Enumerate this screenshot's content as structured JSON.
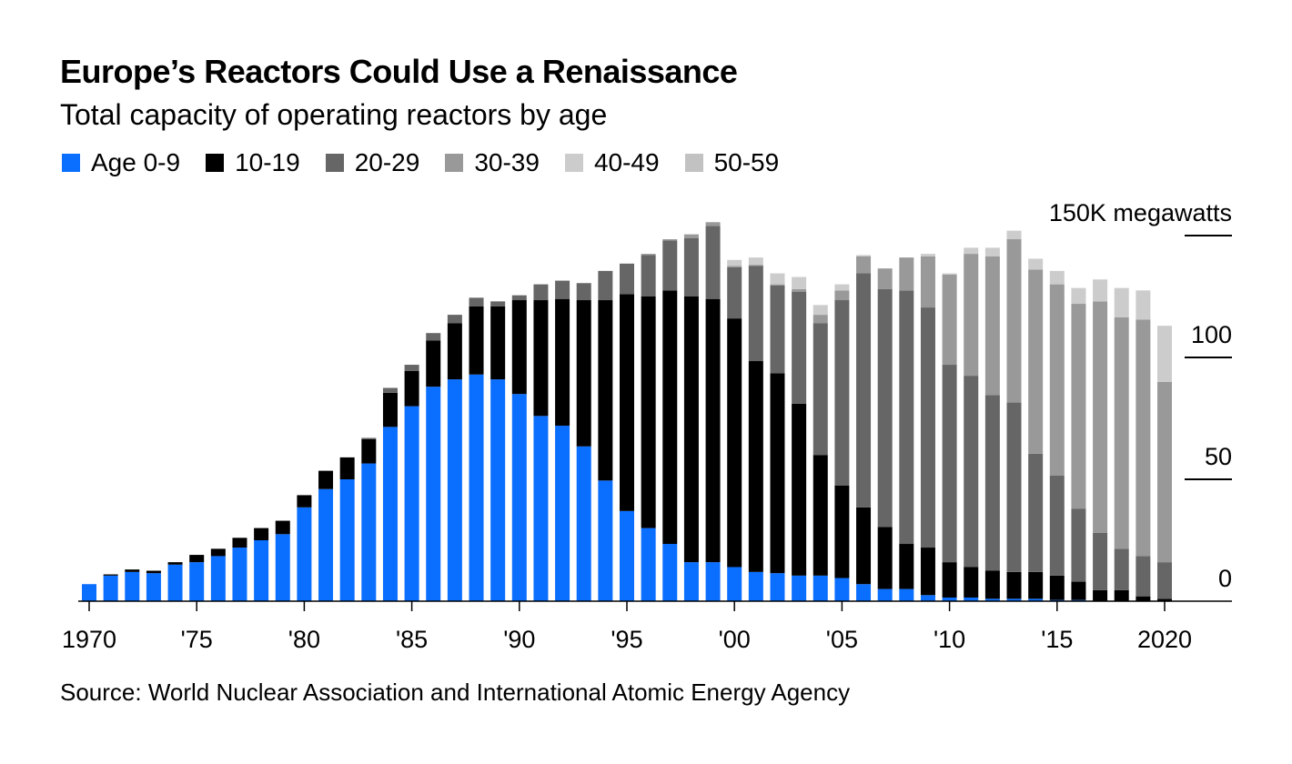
{
  "header": {
    "title": "Europe’s Reactors Could Use a Renaissance",
    "subtitle": "Total capacity of operating reactors by age"
  },
  "footer": {
    "source": "Source: World Nuclear Association and International Atomic Energy Agency"
  },
  "chart_data": {
    "type": "bar",
    "stacked": true,
    "title": "Europe’s Reactors Could Use a Renaissance",
    "subtitle": "Total capacity of operating reactors by age",
    "unit_label": "150K megawatts",
    "ylim": [
      0,
      150
    ],
    "yticks": [
      0,
      50,
      100,
      150
    ],
    "ytick_labels": [
      "0",
      "50",
      "100",
      "150K megawatts"
    ],
    "x": [
      1970,
      1971,
      1972,
      1973,
      1974,
      1975,
      1976,
      1977,
      1978,
      1979,
      1980,
      1981,
      1982,
      1983,
      1984,
      1985,
      1986,
      1987,
      1988,
      1989,
      1990,
      1991,
      1992,
      1993,
      1994,
      1995,
      1996,
      1997,
      1998,
      1999,
      2000,
      2001,
      2002,
      2003,
      2004,
      2005,
      2006,
      2007,
      2008,
      2009,
      2010,
      2011,
      2012,
      2013,
      2014,
      2015,
      2016,
      2017,
      2018,
      2019,
      2020
    ],
    "xticks": [
      1970,
      1975,
      1980,
      1985,
      1990,
      1995,
      2000,
      2005,
      2010,
      2015,
      2020
    ],
    "xtick_labels": [
      "1970",
      "'75",
      "'80",
      "'85",
      "'90",
      "'95",
      "'00",
      "'05",
      "'10",
      "'15",
      "2020"
    ],
    "legend_position": "top-left",
    "series": [
      {
        "name": "Age 0-9",
        "label": "Age 0-9",
        "color": "#0a6eff",
        "values": [
          7,
          10.5,
          12,
          11.5,
          15,
          16,
          18.5,
          22,
          25,
          27.5,
          38.5,
          46,
          50,
          56.5,
          71.5,
          80,
          88,
          91,
          93,
          91,
          85,
          76,
          72,
          63.5,
          49.5,
          37,
          30,
          23.5,
          16,
          16,
          14,
          12,
          11.5,
          10.5,
          10.5,
          9.5,
          7,
          5,
          5,
          2.5,
          1.5,
          1.5,
          1,
          1,
          1,
          0.5,
          0.5,
          0,
          0,
          0,
          0
        ]
      },
      {
        "name": "10-19",
        "label": "10-19",
        "color": "#000000",
        "values": [
          0,
          0.5,
          1,
          1,
          1,
          3,
          3,
          4,
          5,
          5.5,
          5,
          7.5,
          9,
          10,
          14,
          14.5,
          19,
          23,
          28,
          30,
          38.5,
          47.5,
          52,
          60,
          74,
          89,
          95,
          104,
          109,
          108,
          102,
          86.5,
          82,
          70.5,
          49.5,
          38,
          31.5,
          25.5,
          18.5,
          19.5,
          14.5,
          12.5,
          11.5,
          11,
          11,
          10,
          7.5,
          4.5,
          4.5,
          2,
          1
        ]
      },
      {
        "name": "20-29",
        "label": "20-29",
        "color": "#666666",
        "values": [
          0,
          0,
          0,
          0,
          0,
          0,
          0,
          0,
          0,
          0,
          0,
          0,
          0,
          0.5,
          2,
          2.5,
          3,
          3.5,
          3.5,
          2,
          2,
          6.5,
          7.5,
          7,
          12,
          12.5,
          17,
          20.5,
          24,
          30,
          21,
          39,
          36,
          46,
          54,
          76,
          96,
          97.5,
          104,
          98.5,
          81,
          78.5,
          72,
          69.5,
          48.5,
          41,
          30,
          23.5,
          17,
          16.5,
          15
        ]
      },
      {
        "name": "30-39",
        "label": "30-39",
        "color": "#999999",
        "values": [
          0,
          0,
          0,
          0,
          0,
          0,
          0,
          0,
          0,
          0,
          0,
          0,
          0,
          0,
          0,
          0,
          0,
          0,
          0,
          0,
          0,
          0,
          0,
          0,
          0,
          0,
          0.5,
          0.5,
          1.5,
          1.5,
          0.5,
          0.5,
          0.5,
          1,
          3.5,
          4,
          7,
          8.5,
          13.5,
          21,
          37,
          50,
          57,
          67,
          75.5,
          78.5,
          84,
          95,
          95,
          97,
          74
        ]
      },
      {
        "name": "40-49",
        "label": "40-49",
        "color": "#cccccc",
        "values": [
          0,
          0,
          0,
          0,
          0,
          0,
          0,
          0,
          0,
          0,
          0,
          0,
          0,
          0,
          0,
          0,
          0,
          0,
          0,
          0,
          0,
          0,
          0,
          0,
          0,
          0,
          0,
          0,
          0,
          0,
          2.5,
          3,
          4.5,
          5,
          4,
          2.5,
          0.5,
          0,
          0,
          1,
          0.5,
          2.5,
          3.5,
          3.5,
          4.5,
          5.5,
          6.5,
          9,
          12,
          12,
          23
        ]
      },
      {
        "name": "50-59",
        "label": "50-59",
        "color": "#c2c2c2",
        "values": [
          0,
          0,
          0,
          0,
          0,
          0,
          0,
          0,
          0,
          0,
          0,
          0,
          0,
          0,
          0,
          0,
          0,
          0,
          0,
          0,
          0,
          0,
          0,
          0,
          0,
          0,
          0,
          0,
          0,
          0,
          0,
          0,
          0,
          0,
          0,
          0,
          0,
          0,
          0,
          0,
          0,
          0,
          0,
          0,
          0,
          0,
          0,
          0,
          0,
          0,
          0
        ]
      }
    ]
  }
}
